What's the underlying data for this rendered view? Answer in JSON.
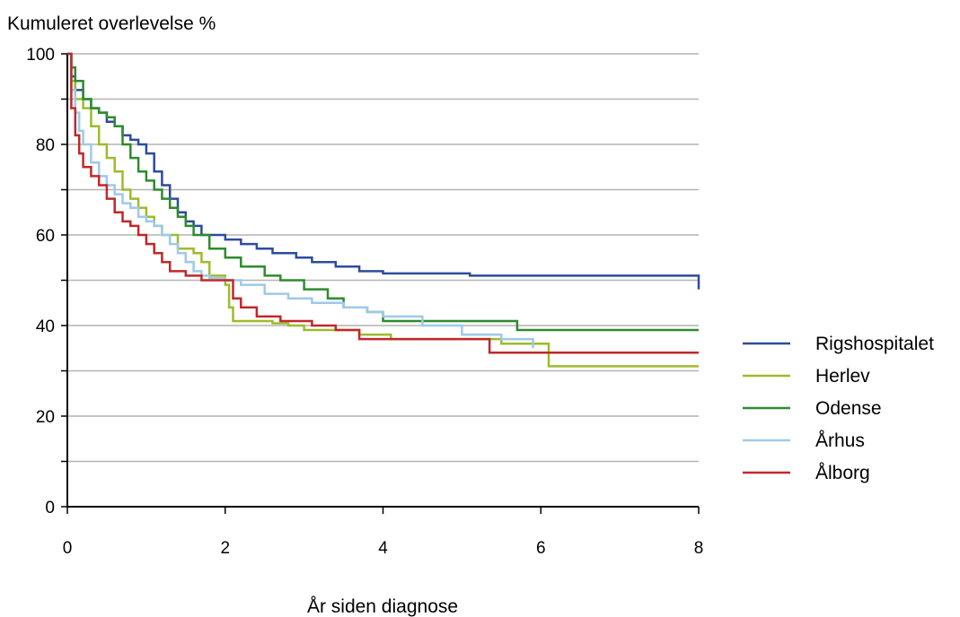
{
  "chart_data": {
    "type": "line",
    "step": true,
    "title": "",
    "ylabel": "Kumuleret overlevelse %",
    "xlabel": "År siden diagnose",
    "xlim": [
      0,
      8
    ],
    "ylim": [
      0,
      100
    ],
    "xticks": [
      0,
      2,
      4,
      6,
      8
    ],
    "yticks": [
      0,
      20,
      40,
      60,
      80,
      100
    ],
    "grid": "horizontal",
    "legend_position": "right",
    "series": [
      {
        "name": "Rigshospitalet",
        "color": "#2c4c9c",
        "x": [
          0,
          0.05,
          0.1,
          0.2,
          0.3,
          0.4,
          0.5,
          0.6,
          0.7,
          0.8,
          0.9,
          1.0,
          1.1,
          1.2,
          1.3,
          1.4,
          1.5,
          1.6,
          1.7,
          1.8,
          2.0,
          2.2,
          2.4,
          2.6,
          2.9,
          3.1,
          3.4,
          3.7,
          4.0,
          5.1,
          6.0,
          7.9,
          8.0
        ],
        "y": [
          100,
          95,
          92,
          90,
          88,
          87,
          85,
          84,
          82,
          81,
          80,
          78,
          74,
          71,
          68,
          65,
          63,
          62,
          60,
          60,
          59,
          58,
          57,
          56,
          55,
          54,
          53,
          52,
          51.5,
          51,
          51,
          51,
          48
        ]
      },
      {
        "name": "Herlev",
        "color": "#9dbb2c",
        "x": [
          0,
          0.05,
          0.1,
          0.2,
          0.3,
          0.4,
          0.5,
          0.6,
          0.7,
          0.8,
          0.9,
          1.0,
          1.1,
          1.2,
          1.4,
          1.6,
          1.7,
          1.8,
          2.0,
          2.05,
          2.1,
          2.3,
          2.6,
          2.8,
          3.0,
          3.3,
          3.7,
          4.1,
          4.5,
          5.0,
          5.5,
          6.1,
          8.0
        ],
        "y": [
          100,
          94,
          90,
          88,
          84,
          80,
          77,
          74,
          70,
          68,
          66,
          64,
          62,
          60,
          57,
          56,
          54,
          51,
          49,
          44,
          41,
          41,
          40.5,
          40,
          39,
          39,
          38,
          37,
          37,
          37,
          36,
          31,
          31
        ]
      },
      {
        "name": "Odense",
        "color": "#2e8b2e",
        "x": [
          0,
          0.05,
          0.1,
          0.2,
          0.3,
          0.4,
          0.5,
          0.6,
          0.7,
          0.8,
          0.9,
          1.0,
          1.1,
          1.2,
          1.3,
          1.4,
          1.5,
          1.6,
          1.8,
          2.0,
          2.2,
          2.5,
          2.7,
          3.0,
          3.3,
          3.5,
          3.8,
          4.0,
          4.5,
          5.0,
          5.7,
          8.0
        ],
        "y": [
          100,
          97,
          94,
          90,
          88,
          87,
          86,
          84,
          80,
          77,
          74,
          72,
          70,
          68,
          66,
          64,
          62,
          60,
          57,
          55,
          53,
          51,
          50,
          48,
          46,
          44,
          43,
          41,
          41,
          41,
          39,
          39
        ]
      },
      {
        "name": "Århus",
        "color": "#9ec9e8",
        "x": [
          0,
          0.05,
          0.1,
          0.15,
          0.2,
          0.3,
          0.4,
          0.5,
          0.6,
          0.7,
          0.8,
          0.9,
          1.0,
          1.1,
          1.2,
          1.3,
          1.4,
          1.5,
          1.6,
          1.7,
          1.8,
          2.0,
          2.2,
          2.5,
          2.8,
          3.1,
          3.5,
          3.8,
          4.0,
          4.5,
          5.0,
          5.5,
          5.9
        ],
        "y": [
          100,
          92,
          87,
          83,
          80,
          76,
          73,
          71,
          69,
          67,
          66,
          64,
          63,
          62,
          60,
          58,
          56,
          54,
          52,
          51,
          50.5,
          50,
          49,
          47,
          46,
          45,
          44,
          43,
          42,
          40,
          38,
          37,
          35
        ]
      },
      {
        "name": "Ålborg",
        "color": "#c0282a",
        "x": [
          0,
          0.05,
          0.1,
          0.15,
          0.2,
          0.3,
          0.4,
          0.5,
          0.6,
          0.7,
          0.8,
          0.9,
          1.0,
          1.1,
          1.2,
          1.3,
          1.5,
          1.7,
          1.9,
          2.1,
          2.2,
          2.4,
          2.7,
          3.1,
          3.4,
          3.7,
          4.0,
          4.5,
          5.0,
          5.35,
          6.0,
          8.0
        ],
        "y": [
          100,
          88,
          82,
          78,
          75,
          73,
          71,
          68,
          65,
          63,
          62,
          60,
          58,
          56,
          54,
          52,
          51,
          50,
          50,
          46,
          44,
          42,
          41,
          40,
          39,
          37,
          37,
          37,
          37,
          34,
          34,
          34
        ]
      }
    ]
  }
}
